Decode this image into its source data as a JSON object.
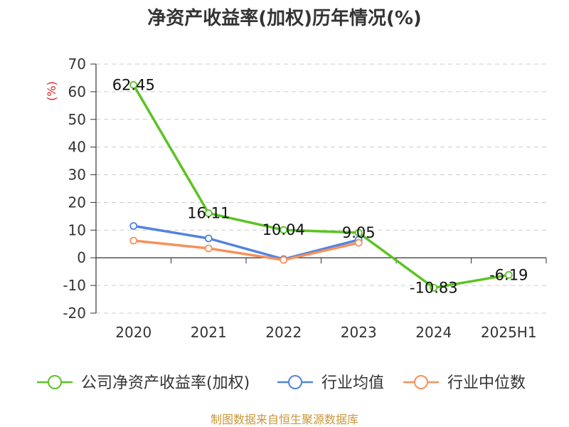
{
  "chart_data": {
    "type": "line",
    "title": "净资产收益率(加权)历年情况(%)",
    "ylabel": "(%)",
    "xlabel": "",
    "categories": [
      "2020",
      "2021",
      "2022",
      "2023",
      "2024",
      "2025H1"
    ],
    "ylim": [
      -20,
      70
    ],
    "yticks": [
      70,
      60,
      50,
      40,
      30,
      20,
      10,
      0,
      -10,
      -20
    ],
    "grid": true,
    "legend_position": "bottom",
    "series": [
      {
        "name": "公司净资产收益率(加权)",
        "color": "#5cc323",
        "values": [
          62.45,
          16.11,
          10.04,
          9.05,
          -10.83,
          -6.19
        ],
        "labels": [
          "62.45",
          "16.11",
          "10.04",
          "9.05",
          "-10.83",
          "-6.19"
        ]
      },
      {
        "name": "行业均值",
        "color": "#5283e0",
        "values": [
          11.5,
          7.0,
          -0.5,
          6.5,
          null,
          null
        ]
      },
      {
        "name": "行业中位数",
        "color": "#f7915b",
        "values": [
          6.2,
          3.4,
          -0.8,
          5.4,
          null,
          null
        ]
      }
    ]
  },
  "source": "制图数据来自恒生聚源数据库",
  "colors": {
    "axis": "#333333",
    "grid": "#cccccc",
    "ylabel": "#e02020",
    "source": "#c8973a"
  }
}
